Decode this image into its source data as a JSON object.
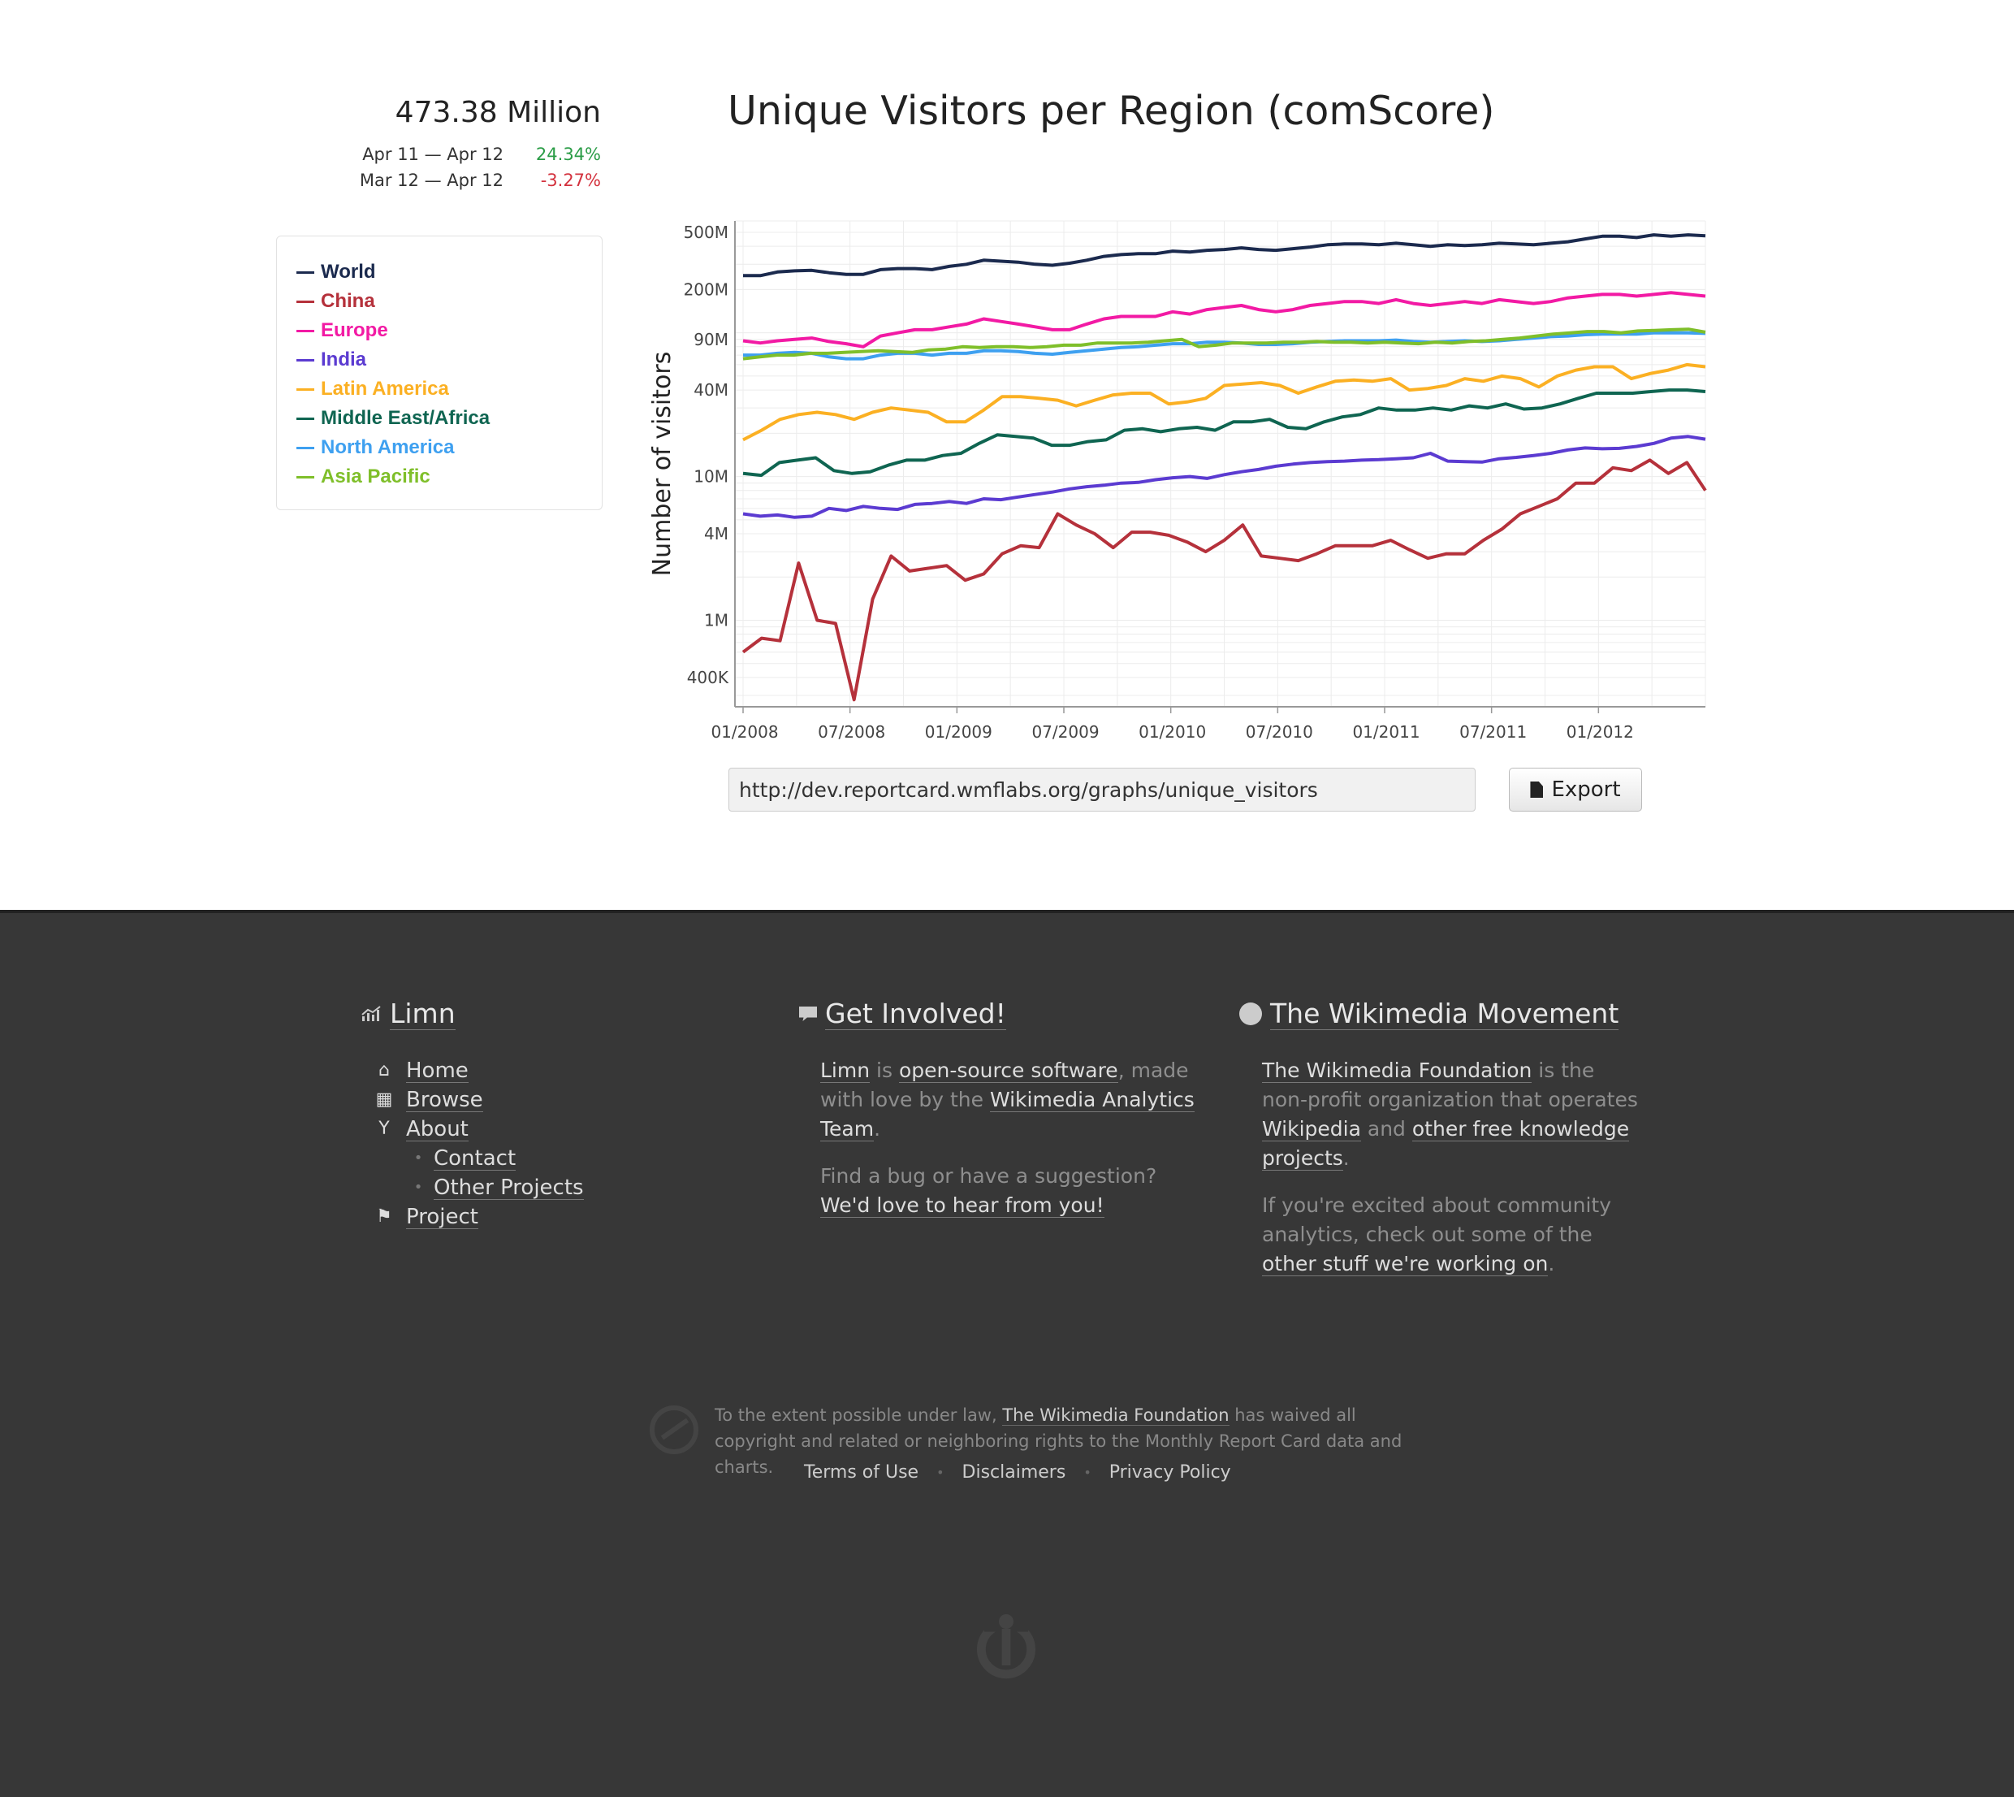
{
  "summary": {
    "total": "473.38 Million",
    "deltas": [
      {
        "range": "Apr 11 — Apr 12",
        "value": "24.34%",
        "sign": "pos"
      },
      {
        "range": "Mar 12 — Apr 12",
        "value": "-3.27%",
        "sign": "neg"
      }
    ]
  },
  "legend": [
    {
      "name": "World",
      "color": "#1b2a4e"
    },
    {
      "name": "China",
      "color": "#b5313b"
    },
    {
      "name": "Europe",
      "color": "#f21aa4"
    },
    {
      "name": "India",
      "color": "#5b3bd1"
    },
    {
      "name": "Latin America",
      "color": "#fbb023"
    },
    {
      "name": "Middle East/Africa",
      "color": "#0f6551"
    },
    {
      "name": "North America",
      "color": "#3ea0f0"
    },
    {
      "name": "Asia Pacific",
      "color": "#7fbf2a"
    }
  ],
  "chart": {
    "title": "Unique Visitors per Region (comScore)",
    "url": "http://dev.reportcard.wmflabs.org/graphs/unique_visitors",
    "export_label": "Export"
  },
  "chart_data": {
    "type": "line",
    "title": "Unique Visitors per Region (comScore)",
    "xlabel": "",
    "ylabel": "Number of visitors",
    "y_scale": "log",
    "ylim": [
      250000,
      600000000
    ],
    "x_tick_labels": [
      "01/2008",
      "07/2008",
      "01/2009",
      "07/2009",
      "01/2010",
      "07/2010",
      "01/2011",
      "07/2011",
      "01/2012"
    ],
    "y_tick_labels": [
      "500M",
      "200M",
      "90M",
      "40M",
      "10M",
      "4M",
      "1M",
      "400K"
    ],
    "y_tick_values": [
      500000000,
      200000000,
      90000000,
      40000000,
      10000000,
      4000000,
      1000000,
      400000
    ],
    "grid": true,
    "x_start": "01/2008",
    "x_step": "1 month",
    "series": [
      {
        "name": "World",
        "color": "#1b2a4e",
        "values": [
          250,
          250,
          265,
          270,
          272,
          262,
          255,
          255,
          275,
          280,
          280,
          275,
          290,
          300,
          320,
          315,
          310,
          300,
          295,
          305,
          320,
          340,
          350,
          355,
          355,
          370,
          365,
          375,
          380,
          390,
          380,
          375,
          385,
          395,
          410,
          415,
          415,
          410,
          420,
          410,
          400,
          410,
          405,
          410,
          420,
          415,
          410,
          420,
          430,
          450,
          470,
          470,
          460,
          480,
          470,
          480,
          473
        ]
      },
      {
        "name": "China",
        "color": "#b5313b",
        "values": [
          0.6,
          0.75,
          0.72,
          2.5,
          1.0,
          0.95,
          0.28,
          1.4,
          2.8,
          2.2,
          2.3,
          2.4,
          1.9,
          2.1,
          2.9,
          3.3,
          3.2,
          5.5,
          4.6,
          4.0,
          3.2,
          4.1,
          4.1,
          3.9,
          3.5,
          3.0,
          3.6,
          4.6,
          2.8,
          2.7,
          2.6,
          2.9,
          3.3,
          3.3,
          3.3,
          3.6,
          3.1,
          2.7,
          2.9,
          2.9,
          3.6,
          4.3,
          5.5,
          6.2,
          7.0,
          9.0,
          9.0,
          11.5,
          11.0,
          13,
          10.5,
          12.5,
          8.0
        ]
      },
      {
        "name": "Europe",
        "color": "#f21aa4",
        "values": [
          88,
          85,
          88,
          90,
          92,
          87,
          84,
          80,
          95,
          100,
          105,
          105,
          110,
          115,
          125,
          120,
          115,
          110,
          105,
          105,
          115,
          125,
          130,
          130,
          130,
          140,
          135,
          145,
          150,
          155,
          145,
          140,
          145,
          155,
          160,
          165,
          165,
          160,
          170,
          160,
          155,
          160,
          165,
          160,
          170,
          165,
          160,
          165,
          175,
          180,
          185,
          185,
          180,
          185,
          190,
          185,
          180
        ]
      },
      {
        "name": "India",
        "color": "#5b3bd1",
        "values": [
          5.5,
          5.3,
          5.4,
          5.2,
          5.3,
          6.0,
          5.8,
          6.2,
          6.0,
          5.9,
          6.4,
          6.5,
          6.7,
          6.5,
          7.0,
          6.9,
          7.2,
          7.5,
          7.8,
          8.2,
          8.5,
          8.7,
          9.0,
          9.1,
          9.5,
          9.8,
          10.0,
          9.7,
          10.3,
          10.8,
          11.2,
          11.8,
          12.2,
          12.5,
          12.7,
          12.8,
          13.0,
          13.1,
          13.3,
          13.5,
          14.5,
          12.8,
          12.7,
          12.6,
          13.3,
          13.6,
          14.0,
          14.5,
          15.3,
          15.8,
          15.6,
          15.7,
          16.2,
          17.0,
          18.5,
          19.0,
          18.2
        ]
      },
      {
        "name": "Latin America",
        "color": "#fbb023",
        "values": [
          18,
          21,
          25,
          27,
          28,
          27,
          25,
          28,
          30,
          29,
          28,
          24,
          24,
          29,
          36,
          36,
          35,
          34,
          31,
          34,
          37,
          38,
          38,
          32,
          33,
          35,
          43,
          44,
          45,
          43,
          38,
          42,
          46,
          47,
          46,
          48,
          40,
          41,
          43,
          48,
          46,
          50,
          48,
          42,
          50,
          55,
          58,
          58,
          48,
          52,
          55,
          60,
          58
        ]
      },
      {
        "name": "Middle East/Africa",
        "color": "#0f6551",
        "values": [
          10.5,
          10.2,
          12.5,
          13,
          13.5,
          11,
          10.5,
          10.8,
          12,
          13,
          13,
          14,
          14.5,
          17,
          19.5,
          19,
          18.5,
          16.5,
          16.5,
          17.5,
          18,
          21,
          21.5,
          20.5,
          21.5,
          22,
          21,
          24,
          24,
          25,
          22,
          21.5,
          24,
          26,
          27,
          30,
          29,
          29,
          30,
          29,
          31,
          30,
          32,
          29.5,
          30,
          32,
          35,
          38,
          38,
          38,
          39,
          40,
          40,
          39
        ]
      },
      {
        "name": "North America",
        "color": "#3ea0f0",
        "values": [
          70,
          70,
          72,
          73,
          72,
          68,
          66,
          66,
          70,
          72,
          72,
          70,
          72,
          72,
          75,
          75,
          74,
          72,
          71,
          73,
          75,
          77,
          79,
          80,
          82,
          84,
          84,
          86,
          86,
          85,
          83,
          83,
          84,
          86,
          87,
          88,
          88,
          88,
          89,
          87,
          86,
          87,
          88,
          87,
          88,
          90,
          92,
          94,
          95,
          97,
          98,
          98,
          98,
          100,
          100,
          100,
          99
        ]
      },
      {
        "name": "Asia Pacific",
        "color": "#7fbf2a",
        "values": [
          66,
          68,
          70,
          70,
          72,
          72,
          73,
          74,
          75,
          74,
          73,
          76,
          77,
          80,
          79,
          80,
          80,
          79,
          80,
          82,
          82,
          85,
          85,
          85,
          86,
          88,
          90,
          80,
          82,
          85,
          85,
          85,
          86,
          86,
          87,
          86,
          86,
          85,
          86,
          85,
          84,
          86,
          85,
          87,
          88,
          90,
          92,
          95,
          98,
          100,
          102,
          102,
          100,
          103,
          104,
          105,
          106,
          101
        ]
      }
    ]
  },
  "footer": {
    "limn": {
      "heading": "Limn",
      "nav": [
        {
          "label": "Home",
          "icon": "home-icon"
        },
        {
          "label": "Browse",
          "icon": "grid-icon"
        },
        {
          "label": "About",
          "icon": "glass-icon"
        },
        {
          "label": "Contact",
          "icon": "bullet",
          "sub": true
        },
        {
          "label": "Other Projects",
          "icon": "bullet",
          "sub": true
        },
        {
          "label": "Project",
          "icon": "bookmark-icon"
        }
      ]
    },
    "involved": {
      "heading": "Get Involved!",
      "p1_a": "Limn",
      "p1_b": " is ",
      "p1_c": "open-source software",
      "p1_d": ", made with love by the ",
      "p1_e": "Wikimedia Analytics Team",
      "p1_f": ".",
      "p2_a": "Find a bug or have a suggestion? ",
      "p2_b": "We'd love to hear from you!"
    },
    "movement": {
      "heading": "The Wikimedia Movement",
      "p1_a": "The Wikimedia Foundation",
      "p1_b": " is the non-profit organization that operates ",
      "p1_c": "Wikipedia",
      "p1_d": " and ",
      "p1_e": "other free knowledge projects",
      "p1_f": ".",
      "p2_a": "If you're excited about community analytics, check out some of the ",
      "p2_b": "other stuff we're working on",
      "p2_c": "."
    },
    "copyright_a": "To the extent possible under law, ",
    "copyright_b": "The Wikimedia Foundation",
    "copyright_c": " has waived all copyright and related or neighboring rights to the Monthly Report Card data and charts.",
    "links": [
      "Terms of Use",
      "Disclaimers",
      "Privacy Policy"
    ]
  }
}
